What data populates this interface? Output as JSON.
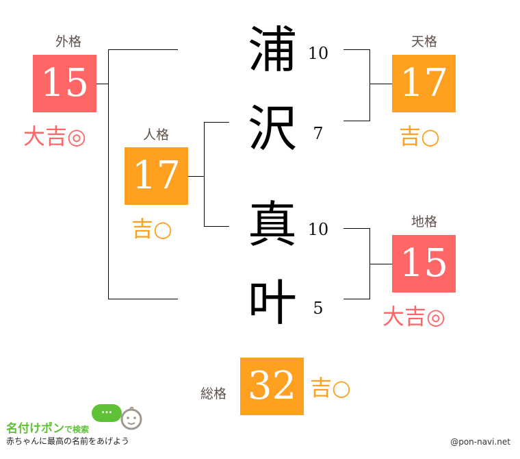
{
  "colors": {
    "great": "#ff6666",
    "good": "#ffa020",
    "label": "#5e5048"
  },
  "name_chars": [
    {
      "char": "浦",
      "strokes": "10"
    },
    {
      "char": "沢",
      "strokes": "7"
    },
    {
      "char": "真",
      "strokes": "10"
    },
    {
      "char": "叶",
      "strokes": "5"
    }
  ],
  "gaikaku": {
    "label": "外格",
    "value": "15",
    "result": "大吉◎"
  },
  "tenkaku": {
    "label": "天格",
    "value": "17",
    "result": "吉○"
  },
  "jinkaku": {
    "label": "人格",
    "value": "17",
    "result": "吉○"
  },
  "chikaku": {
    "label": "地格",
    "value": "15",
    "result": "大吉◎"
  },
  "soukaku": {
    "label": "総格",
    "value": "32",
    "result": "吉○"
  },
  "logo": {
    "title": "名付けポン",
    "suffix": "で検索",
    "tagline": "赤ちゃんに最高の名前をあげよう",
    "bubble": "..."
  },
  "credit": "@pon-navi.net"
}
